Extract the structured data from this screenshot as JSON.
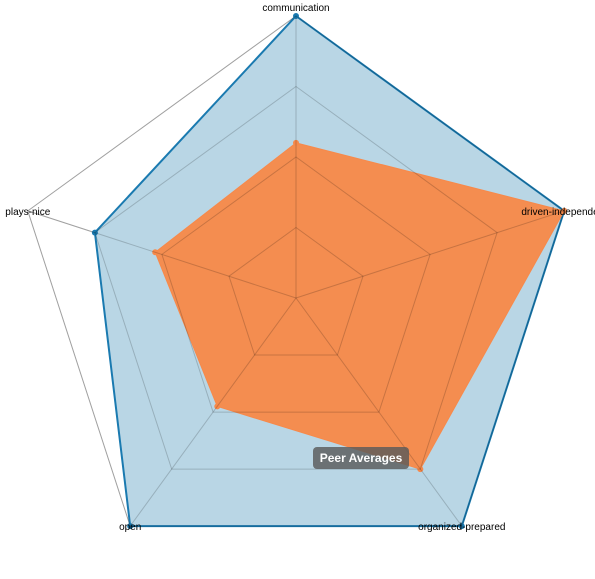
{
  "chart_data": {
    "type": "radar",
    "axes": [
      "communication",
      "driven-independent",
      "organized-prepared",
      "open",
      "plays-nice"
    ],
    "max": 4,
    "grid_levels": [
      1,
      2,
      3,
      4
    ],
    "series": [
      {
        "values": [
          4,
          4,
          4,
          4,
          3
        ],
        "color": "#1a7ab0",
        "fill": "#b9d6e5"
      },
      {
        "values": [
          2.2,
          4,
          3,
          1.9,
          2.1
        ],
        "color": "#f7894a",
        "fill": "#f7894a"
      }
    ]
  },
  "tooltip": {
    "label": "Peer Averages"
  }
}
